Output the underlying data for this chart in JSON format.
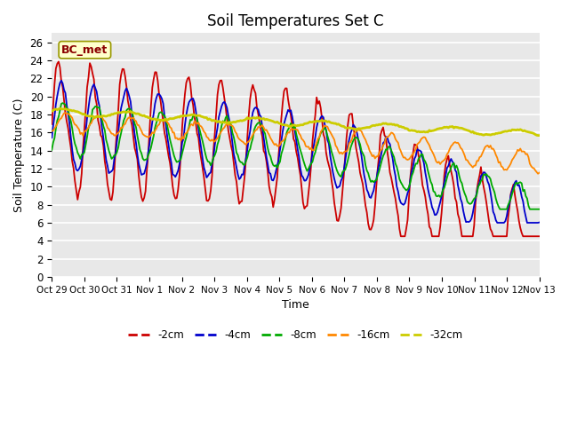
{
  "title": "Soil Temperatures Set C",
  "xlabel": "Time",
  "ylabel": "Soil Temperature (C)",
  "ylim": [
    0,
    27
  ],
  "yticks": [
    0,
    2,
    4,
    6,
    8,
    10,
    12,
    14,
    16,
    18,
    20,
    22,
    24,
    26
  ],
  "x_labels": [
    "Oct 29",
    "Oct 30",
    "Oct 31",
    "Nov 1",
    "Nov 2",
    "Nov 3",
    "Nov 4",
    "Nov 5",
    "Nov 6",
    "Nov 7",
    "Nov 8",
    "Nov 9",
    "Nov 10",
    "Nov 11",
    "Nov 12",
    "Nov 13"
  ],
  "annotation_text": "BC_met",
  "colors": {
    "-2cm": "#cc0000",
    "-4cm": "#0000cc",
    "-8cm": "#00aa00",
    "-16cm": "#ff8800",
    "-32cm": "#cccc00"
  },
  "background_color": "#ffffff",
  "plot_bg_color": "#e8e8e8",
  "grid_color": "#ffffff"
}
